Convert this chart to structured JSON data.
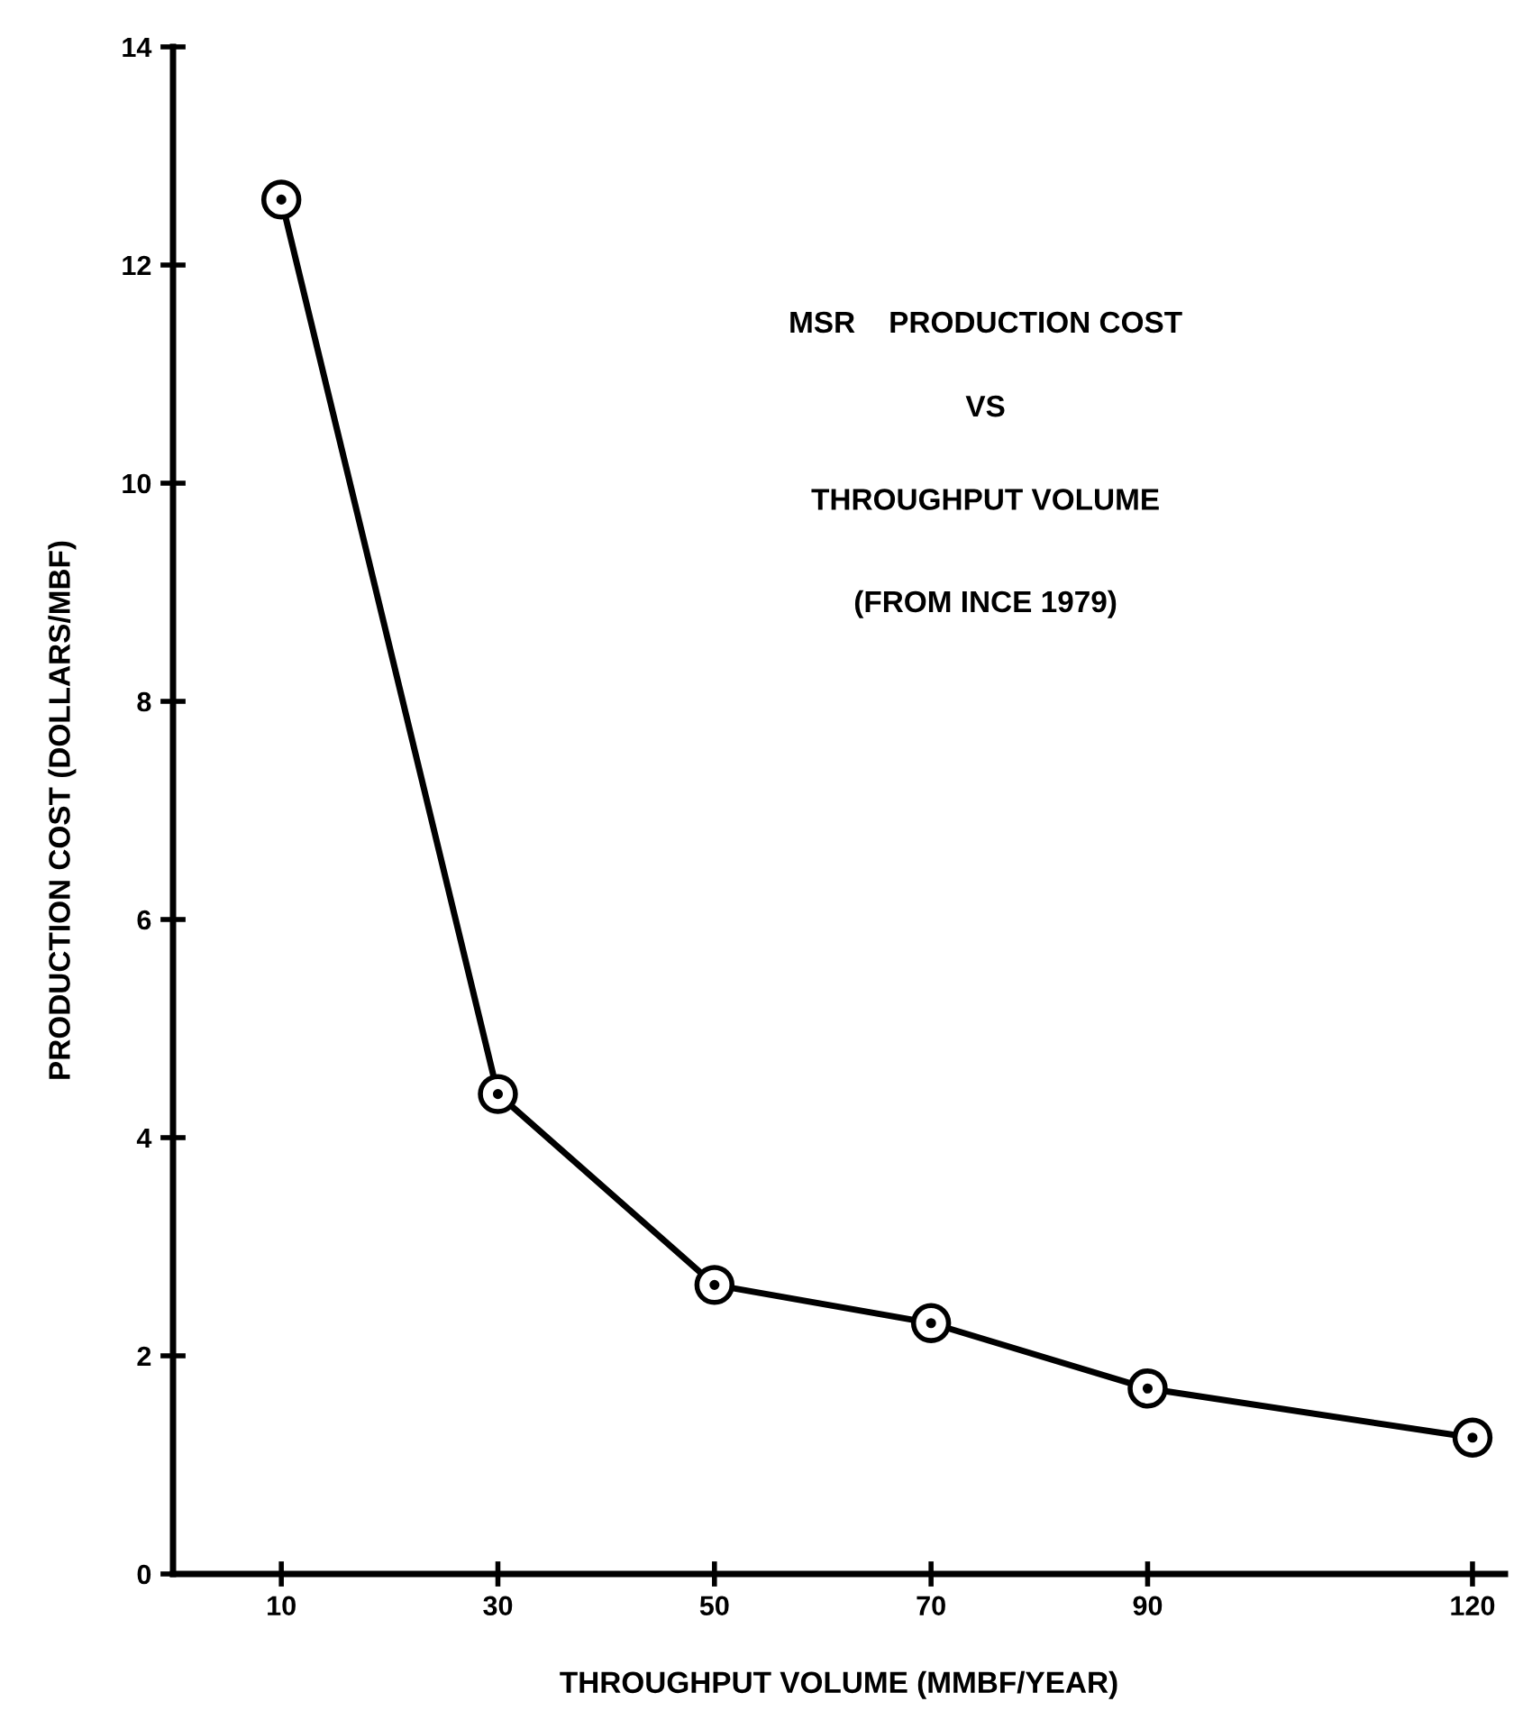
{
  "chart_data": {
    "type": "line",
    "xlabel": "THROUGHPUT VOLUME (MMBF/YEAR)",
    "ylabel": "PRODUCTION COST (DOLLARS/MBF)",
    "annotations": [
      "MSR    PRODUCTION COST",
      "VS",
      "THROUGHPUT VOLUME",
      "(FROM INCE 1979)"
    ],
    "x": [
      10,
      30,
      50,
      70,
      90,
      120
    ],
    "series": [
      {
        "color": "#000000",
        "values": [
          12.6,
          4.4,
          2.65,
          2.3,
          1.7,
          1.25
        ]
      }
    ],
    "xlim": [
      0,
      123
    ],
    "xticks": [
      10,
      30,
      50,
      70,
      90,
      120
    ],
    "ylim": [
      0,
      14
    ],
    "yticks": [
      0,
      2,
      4,
      6,
      8,
      10,
      12,
      14
    ],
    "grid": false,
    "legend": false,
    "marker": "circle",
    "line_style": "solid"
  }
}
